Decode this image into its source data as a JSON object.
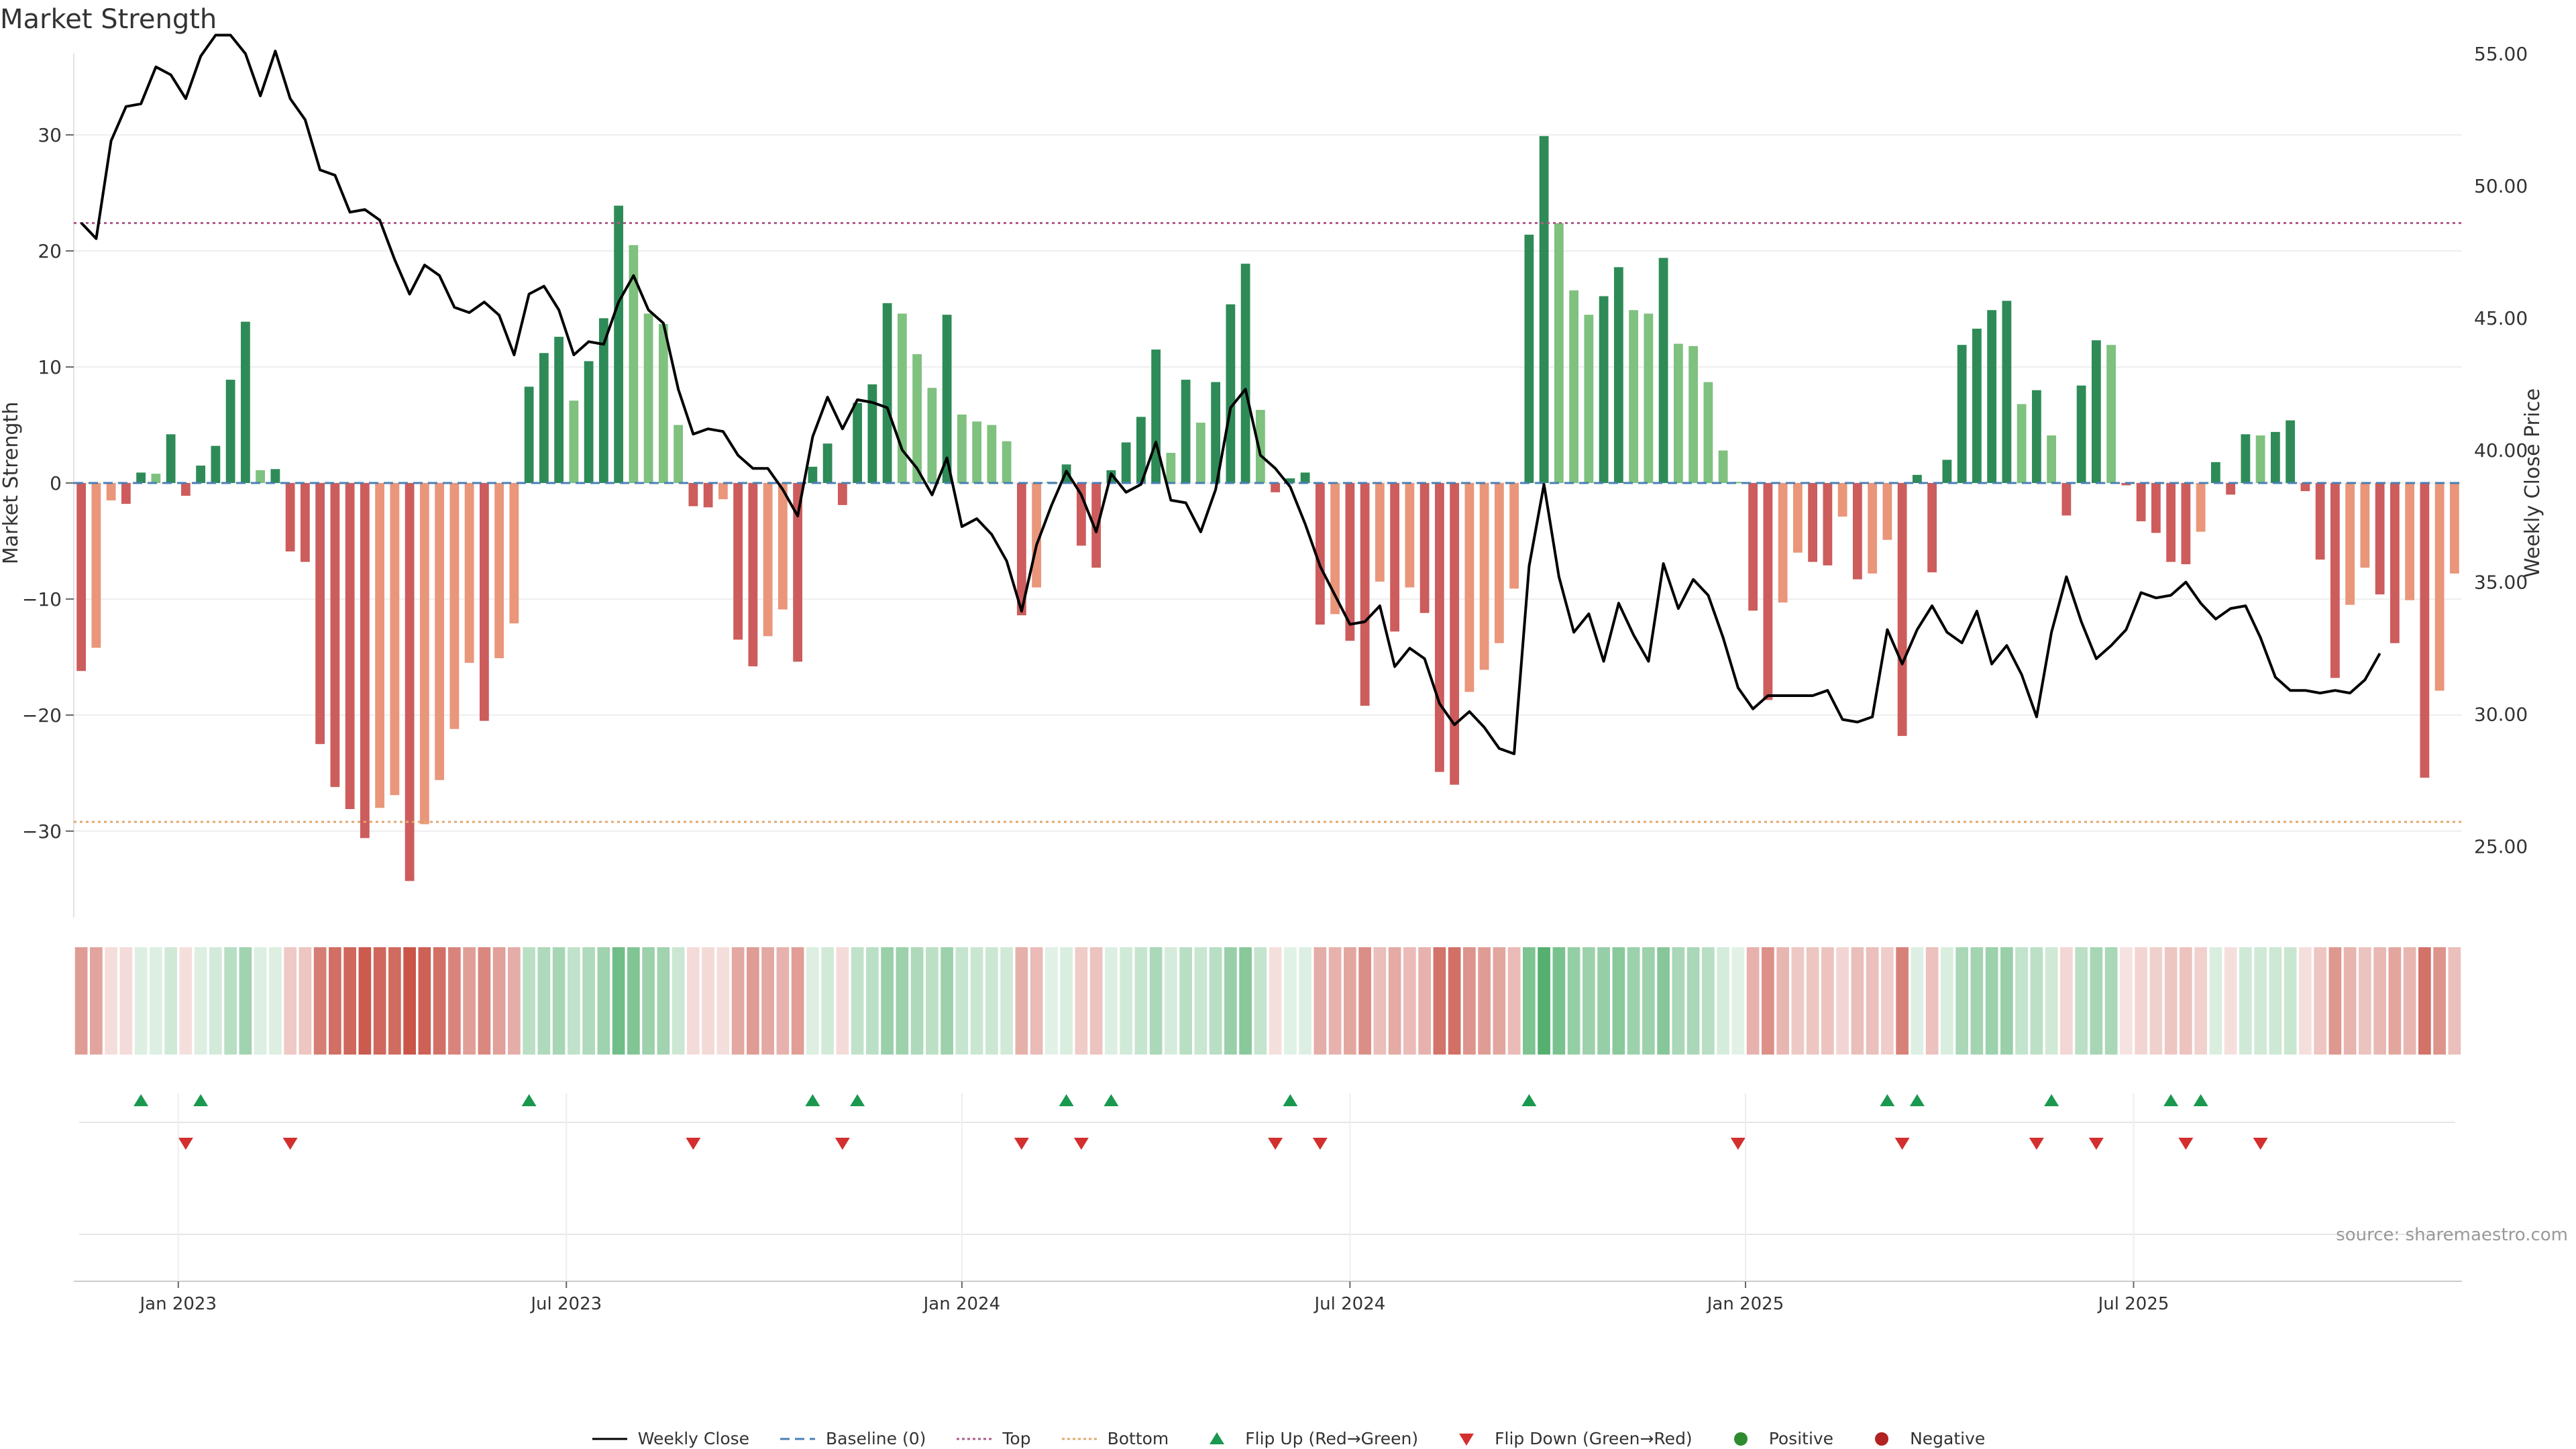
{
  "title": "Market Strength",
  "source": "source: sharemaestro.com",
  "colors": {
    "strong_green": "#2e8b57",
    "light_green": "#7fc17f",
    "strong_red": "#cd5c5c",
    "light_red": "#e9967a",
    "price": "#000000",
    "baseline": "#4a7fb5",
    "top": "#b05a8c",
    "bottom": "#e3a86b",
    "flip_up": "#1a9850",
    "flip_down": "#d32f2f"
  },
  "legend": {
    "weekly_close": "Weekly Close",
    "baseline": "Baseline (0)",
    "top": "Top",
    "bottom": "Bottom",
    "flip_up": "Flip Up (Red→Green)",
    "flip_down": "Flip Down (Green→Red)",
    "positive": "Positive",
    "negative": "Negative"
  },
  "chart_data": {
    "type": "bar+line",
    "start_week": "2022-11-14",
    "ylabel_left": "Market Strength",
    "ylabel_right": "Weekly Close Price",
    "ylim_left": [
      -37,
      37
    ],
    "ylim_right": [
      22.5,
      55
    ],
    "yticks_left": [
      "30",
      "20",
      "10",
      "0",
      "−10",
      "−20",
      "−30"
    ],
    "yticks_left_values": [
      30,
      20,
      10,
      0,
      -10,
      -20,
      -30
    ],
    "yticks_right": [
      "55.00",
      "50.00",
      "45.00",
      "40.00",
      "35.00",
      "30.00",
      "25.00"
    ],
    "yticks_right_values": [
      55,
      50,
      45,
      40,
      35,
      30,
      25
    ],
    "x_ticks": [
      {
        "label": "Jan 2023",
        "week": 7
      },
      {
        "label": "Jul 2023",
        "week": 33
      },
      {
        "label": "Jan 2024",
        "week": 59.5
      },
      {
        "label": "Jul 2024",
        "week": 85.5
      },
      {
        "label": "Jan 2025",
        "week": 112
      },
      {
        "label": "Jul 2025",
        "week": 138
      }
    ],
    "top_line": 22.4,
    "bottom_line": -29.2,
    "strength": [
      -16.2,
      -14.2,
      -1.5,
      -1.8,
      0.9,
      0.8,
      4.2,
      -1.1,
      1.5,
      3.2,
      8.9,
      13.9,
      1.1,
      1.2,
      -5.9,
      -6.8,
      -22.5,
      -26.2,
      -28.1,
      -30.6,
      -28.0,
      -26.9,
      -34.3,
      -29.4,
      -25.6,
      -21.2,
      -15.5,
      -20.5,
      -15.1,
      -12.1,
      8.3,
      11.2,
      12.6,
      7.1,
      10.5,
      14.2,
      23.9,
      20.5,
      14.6,
      13.7,
      5.0,
      -2.0,
      -2.1,
      -1.4,
      -13.5,
      -15.8,
      -13.2,
      -10.9,
      -15.4,
      1.4,
      3.4,
      -1.9,
      6.9,
      8.5,
      15.5,
      14.6,
      11.1,
      8.2,
      14.5,
      5.9,
      5.3,
      5.0,
      3.6,
      -11.4,
      -9.0,
      0.1,
      1.6,
      -5.4,
      -7.3,
      1.1,
      3.5,
      5.7,
      11.5,
      2.6,
      8.9,
      5.2,
      8.7,
      15.4,
      18.9,
      6.3,
      -0.8,
      0.4,
      0.9,
      -12.2,
      -11.3,
      -13.6,
      -19.2,
      -8.5,
      -12.8,
      -9.0,
      -11.2,
      -24.9,
      -26.0,
      -18.0,
      -16.1,
      -13.8,
      -9.1,
      21.4,
      29.9,
      22.4,
      16.6,
      14.5,
      16.1,
      18.6,
      14.9,
      14.6,
      19.4,
      12.0,
      11.8,
      8.7,
      2.8,
      0.1,
      -11.0,
      -18.7,
      -10.3,
      -6.0,
      -6.8,
      -7.1,
      -2.9,
      -8.3,
      -7.8,
      -4.9,
      -21.8,
      0.7,
      -7.7,
      2.0,
      11.9,
      13.3,
      14.9,
      15.7,
      6.8,
      8.0,
      4.1,
      -2.8,
      8.4,
      12.3,
      11.9,
      -0.2,
      -3.3,
      -4.3,
      -6.8,
      -7.0,
      -4.2,
      1.8,
      -1.0,
      4.2,
      4.1,
      4.4,
      5.4,
      -0.7,
      -6.6,
      -16.8,
      -10.5,
      -7.3,
      -9.6,
      -13.8,
      -10.1,
      -25.4,
      -17.9,
      -7.8
    ],
    "weekly_close": [
      48.6,
      48.0,
      51.7,
      53.0,
      53.1,
      54.5,
      54.2,
      53.3,
      54.9,
      55.7,
      55.7,
      55.0,
      53.4,
      55.1,
      53.3,
      52.5,
      50.6,
      50.4,
      49.0,
      49.1,
      48.7,
      47.2,
      45.9,
      47.0,
      46.6,
      45.4,
      45.2,
      45.6,
      45.1,
      43.6,
      45.9,
      46.2,
      45.3,
      43.6,
      44.1,
      44.0,
      45.6,
      46.6,
      45.3,
      44.8,
      42.3,
      40.6,
      40.8,
      40.7,
      39.8,
      39.3,
      39.3,
      38.5,
      37.5,
      40.5,
      42.0,
      40.8,
      41.9,
      41.8,
      41.6,
      40.0,
      39.3,
      38.3,
      39.7,
      37.1,
      37.4,
      36.8,
      35.8,
      33.9,
      36.4,
      37.9,
      39.2,
      38.3,
      36.9,
      39.1,
      38.4,
      38.7,
      40.3,
      38.1,
      38.0,
      36.9,
      38.5,
      41.6,
      42.3,
      39.8,
      39.3,
      38.6,
      37.2,
      35.6,
      34.5,
      33.4,
      33.5,
      34.1,
      31.8,
      32.5,
      32.1,
      30.4,
      29.6,
      30.1,
      29.5,
      28.7,
      28.5,
      35.6,
      38.7,
      35.2,
      33.1,
      33.8,
      32.0,
      34.2,
      33.0,
      32.0,
      35.7,
      34.0,
      35.1,
      34.5,
      32.9,
      31.0,
      30.2,
      30.7,
      30.7,
      30.7,
      30.7,
      30.9,
      29.8,
      29.7,
      29.9,
      33.2,
      31.9,
      33.2,
      34.1,
      33.1,
      32.7,
      33.9,
      31.9,
      32.6,
      31.5,
      29.9,
      33.1,
      35.2,
      33.5,
      32.1,
      32.6,
      33.2,
      34.6,
      34.4,
      34.5,
      35.0,
      34.2,
      33.6,
      34.0,
      34.1,
      32.9,
      31.4,
      30.9,
      30.9,
      30.8,
      30.9,
      30.8,
      31.3,
      32.3
    ],
    "flip_up_weeks": [
      4,
      8,
      30,
      49,
      52,
      66,
      69,
      81,
      97,
      121,
      123,
      132,
      140,
      142
    ],
    "flip_down_weeks": [
      7,
      14,
      41,
      51,
      63,
      67,
      80,
      83,
      111,
      122,
      131,
      135,
      141,
      146
    ]
  }
}
